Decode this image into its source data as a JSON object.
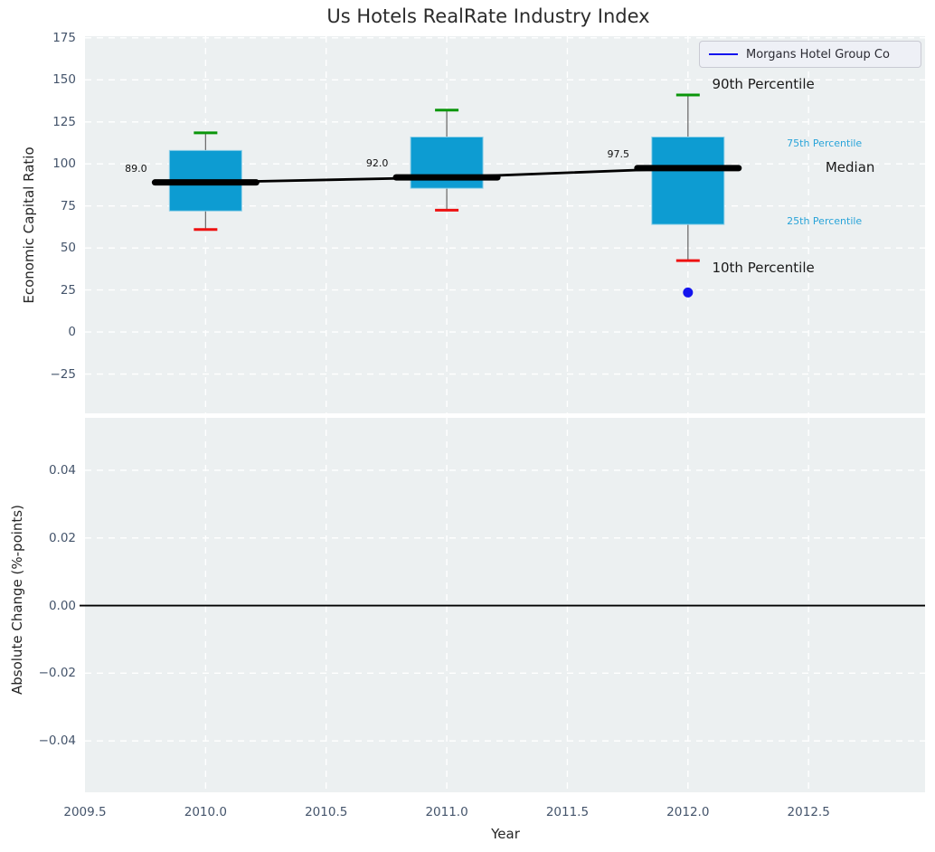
{
  "title": "Us Hotels RealRate Industry Index",
  "legend": {
    "label": "Morgans Hotel Group Co",
    "line_color": "#1414ee"
  },
  "colors": {
    "plot_background": "#ecf0f1",
    "grid": "#ffffff",
    "box_fill": "#0d9cd2",
    "whisker": "#6e6e6e",
    "cap_90th": "#0a960a",
    "cap_10th": "#ee1111",
    "median": "#000000",
    "company": "#1414ee",
    "tick_text": "#44546b",
    "annotation_dark": "#1a1a1a",
    "annotation_cyan": "#29a4d9"
  },
  "chart_data": [
    {
      "type": "boxplot",
      "title": "Us Hotels RealRate Industry Index",
      "ylabel": "Economic Capital Ratio",
      "xlabel": "",
      "x_range": [
        2009.5,
        2012.983
      ],
      "y_range": [
        -48.4,
        176.0
      ],
      "x_tick_values": [
        2009.5,
        2010.0,
        2010.5,
        2011.0,
        2011.5,
        2012.0,
        2012.5
      ],
      "x_tick_labels": [
        "2009.5",
        "2010.0",
        "2010.5",
        "2011.0",
        "2011.5",
        "2012.0",
        "2012.5"
      ],
      "x_ticks_shown": false,
      "y_tick_values": [
        175,
        150,
        125,
        100,
        75,
        50,
        25,
        0,
        -25
      ],
      "y_tick_labels": [
        "175",
        "150",
        "125",
        "100",
        "75",
        "50",
        "25",
        "0",
        "−25"
      ],
      "grid": "white-dashed",
      "legend_position": "upper right",
      "boxes": [
        {
          "x": 2010,
          "p10": 61,
          "p25": 72,
          "median": 89.0,
          "p75": 108,
          "p90": 118.5,
          "label": "89.0"
        },
        {
          "x": 2011,
          "p10": 72.5,
          "p25": 85.5,
          "median": 92.0,
          "p75": 116,
          "p90": 132,
          "label": "92.0"
        },
        {
          "x": 2012,
          "p10": 42.5,
          "p25": 64,
          "median": 97.5,
          "p75": 116,
          "p90": 141,
          "label": "97.5"
        }
      ],
      "median_line": {
        "x": [
          2010,
          2011,
          2012
        ],
        "y": [
          89.0,
          92.0,
          97.5
        ]
      },
      "company_point": {
        "name": "Morgans Hotel Group Co",
        "x": 2012,
        "y": 23.5
      },
      "annotations": [
        {
          "text": "90th Percentile",
          "x": 2012.1,
          "y": 147.5,
          "color": "#1a1a1a",
          "size": 15
        },
        {
          "text": "75th Percentile",
          "x": 2012.41,
          "y": 113.0,
          "color": "#29a4d9",
          "size": 11
        },
        {
          "text": "Median",
          "x": 2012.57,
          "y": 98.0,
          "color": "#1a1a1a",
          "size": 15
        },
        {
          "text": "25th Percentile",
          "x": 2012.41,
          "y": 67.0,
          "color": "#29a4d9",
          "size": 11
        },
        {
          "text": "10th Percentile",
          "x": 2012.1,
          "y": 38.0,
          "color": "#1a1a1a",
          "size": 15
        }
      ]
    },
    {
      "type": "line",
      "ylabel": "Absolute Change (%-points)",
      "xlabel": "Year",
      "x_range": [
        2009.5,
        2012.983
      ],
      "y_range": [
        -0.0552,
        0.0555
      ],
      "x_tick_values": [
        2009.5,
        2010.0,
        2010.5,
        2011.0,
        2011.5,
        2012.0,
        2012.5
      ],
      "x_tick_labels": [
        "2009.5",
        "2010.0",
        "2010.5",
        "2011.0",
        "2011.5",
        "2012.0",
        "2012.5"
      ],
      "y_tick_values": [
        0.04,
        0.02,
        0.0,
        -0.02,
        -0.04
      ],
      "y_tick_labels": [
        "0.04",
        "0.02",
        "0.00",
        "−0.02",
        "−0.04"
      ],
      "grid": "white-dashed",
      "zero_line": 0.0,
      "series": []
    }
  ]
}
